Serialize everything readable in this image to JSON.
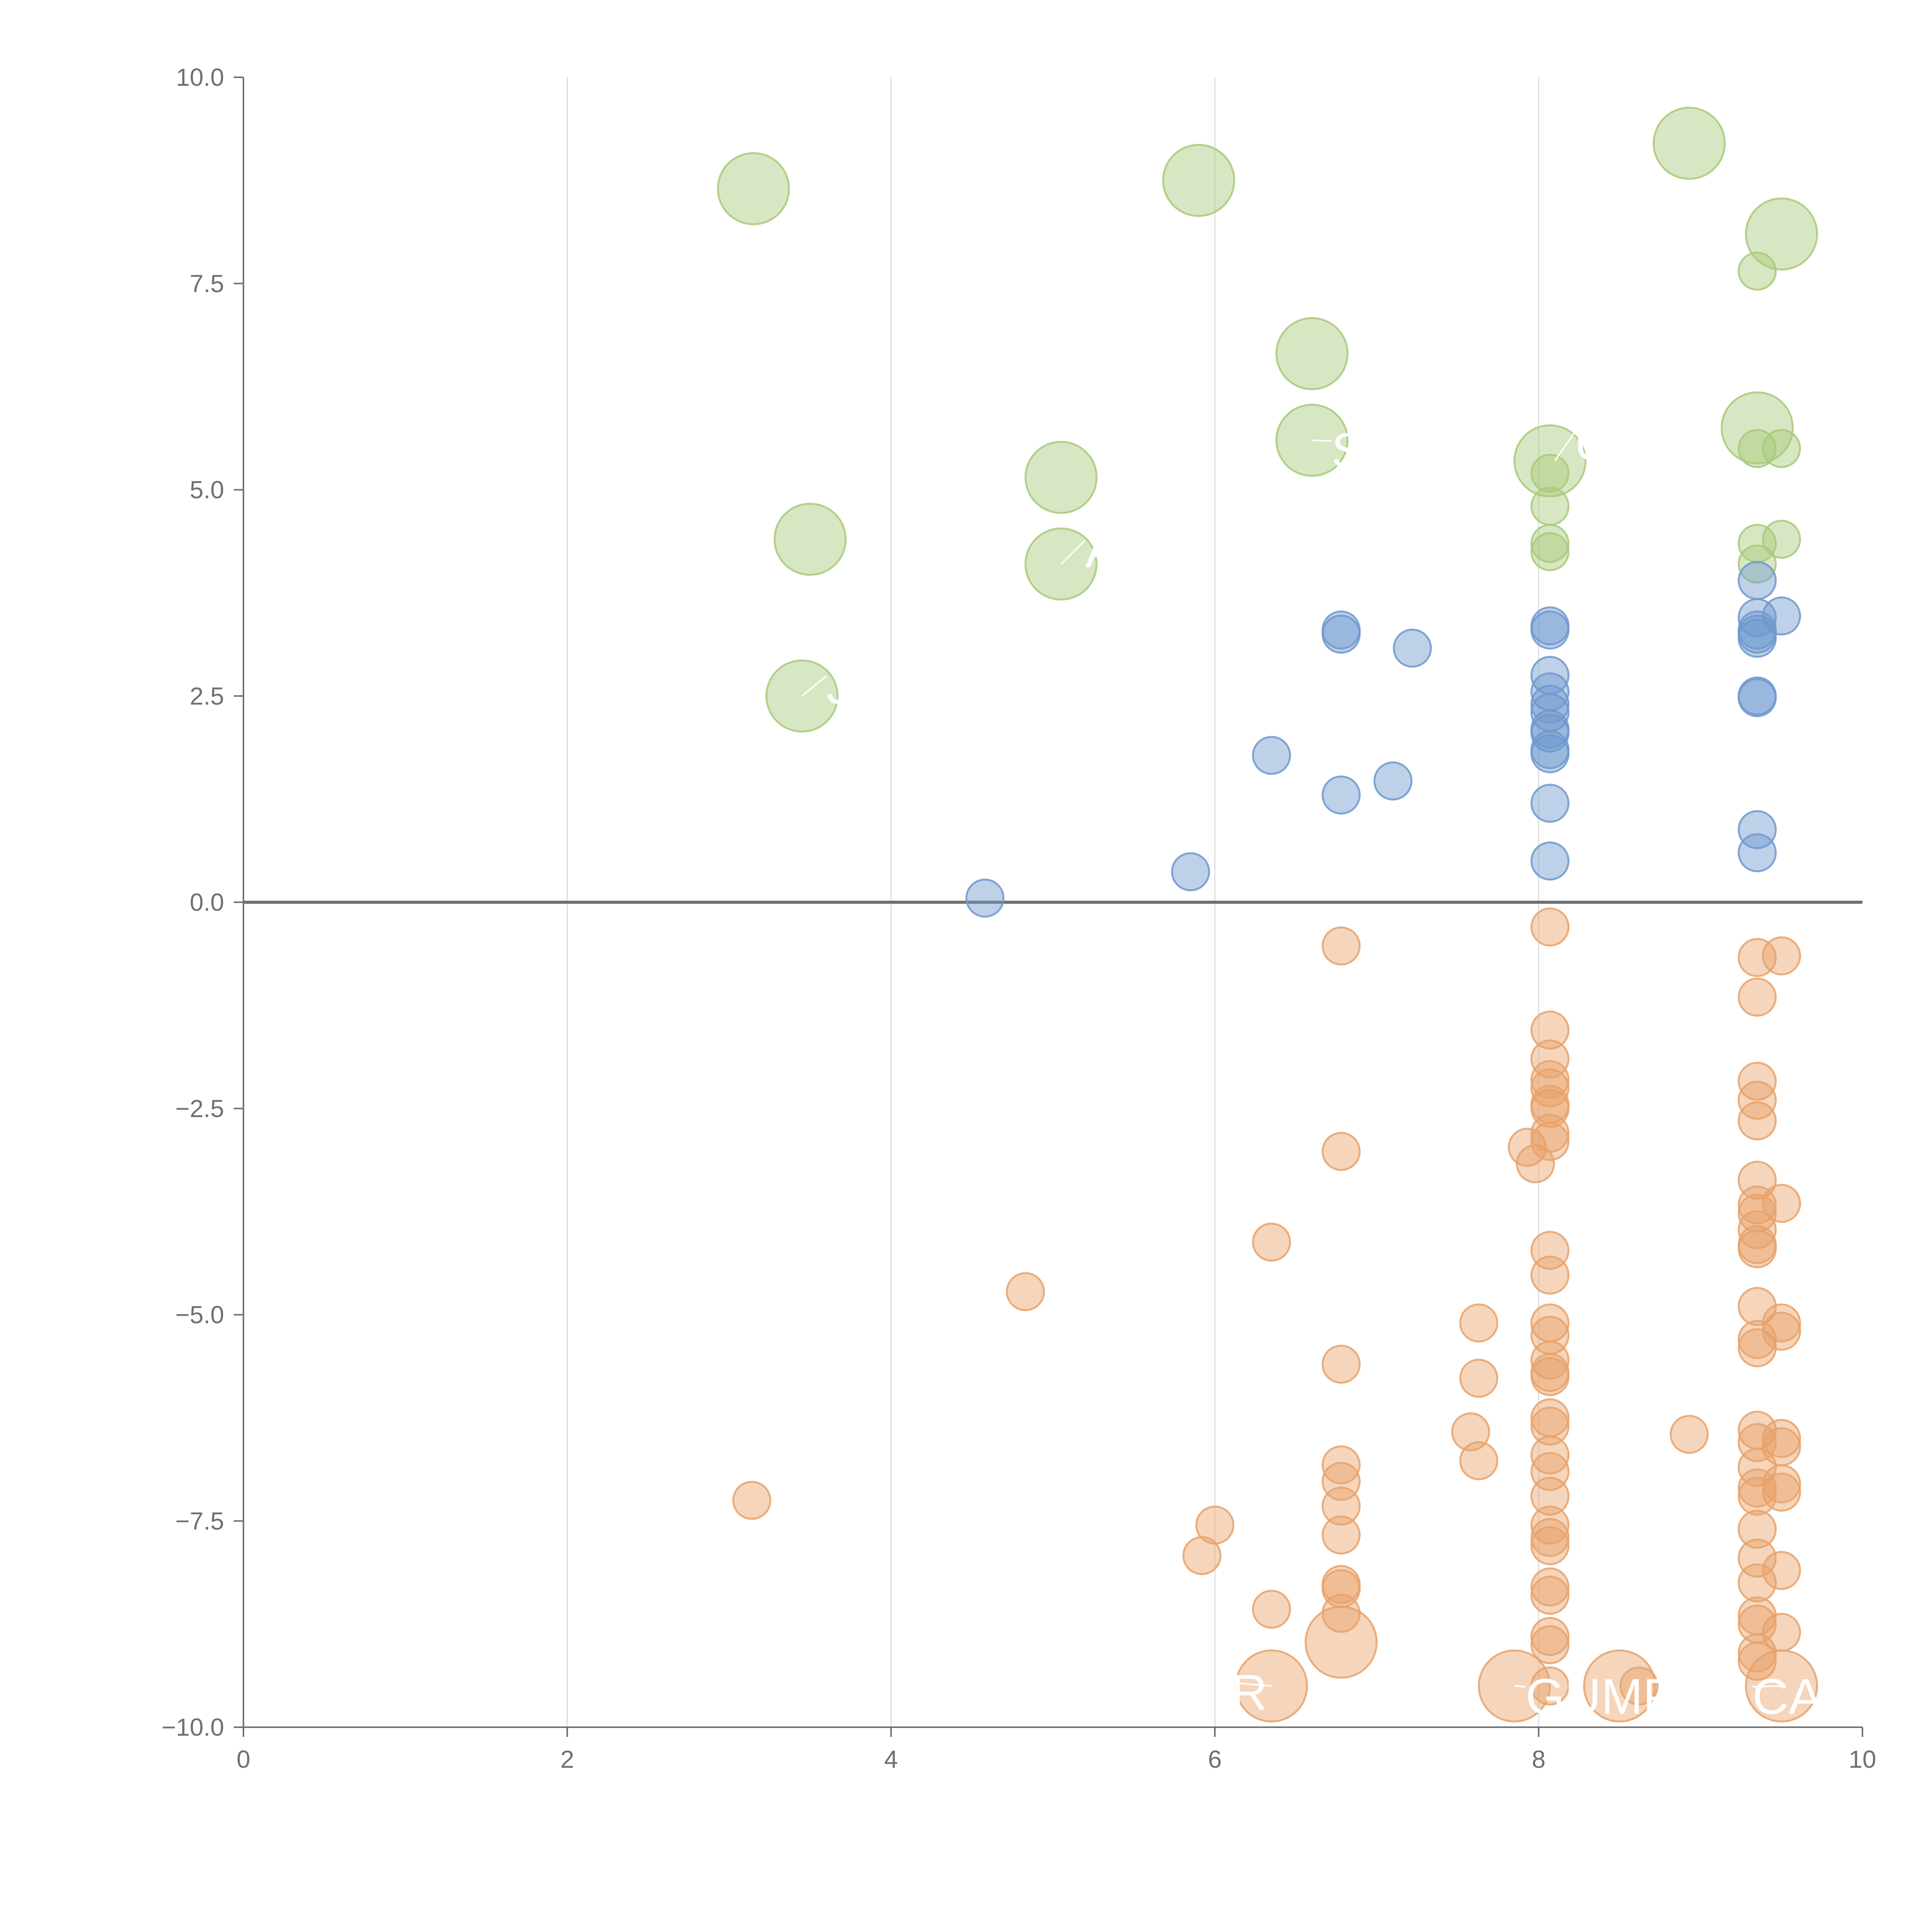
{
  "chart_data": {
    "type": "scatter",
    "title": "",
    "xlabel": "",
    "ylabel": "",
    "xlim": [
      0,
      10
    ],
    "ylim": [
      -10,
      10
    ],
    "x_ticks": [
      "0",
      "2",
      "4",
      "6",
      "8",
      "10"
    ],
    "y_ticks": [
      "10.0",
      "7.5",
      "5.0",
      "2.5",
      "0.0",
      "−2.5",
      "−5.0",
      "−7.5",
      "−10.0"
    ],
    "colors": {
      "green": "#a9c97a",
      "blue": "#6f98cf",
      "orange": "#e8a26a",
      "axis": "#707070",
      "grid": "#dcdcdc"
    },
    "series": [
      {
        "name": "green",
        "color": "#a9c97a",
        "points": [
          {
            "x": 3.15,
            "y": 8.65,
            "size": "large"
          },
          {
            "x": 5.9,
            "y": 8.75,
            "size": "large"
          },
          {
            "x": 8.93,
            "y": 9.2,
            "size": "large"
          },
          {
            "x": 9.5,
            "y": 8.1,
            "size": "large"
          },
          {
            "x": 9.35,
            "y": 7.65,
            "size": "small"
          },
          {
            "x": 6.6,
            "y": 6.65,
            "size": "large"
          },
          {
            "x": 6.6,
            "y": 5.6,
            "size": "large"
          },
          {
            "x": 8.07,
            "y": 5.35,
            "size": "large"
          },
          {
            "x": 9.35,
            "y": 5.75,
            "size": "large"
          },
          {
            "x": 9.35,
            "y": 5.5,
            "size": "small"
          },
          {
            "x": 9.5,
            "y": 5.5,
            "size": "small"
          },
          {
            "x": 5.05,
            "y": 5.15,
            "size": "large"
          },
          {
            "x": 3.5,
            "y": 4.4,
            "size": "large"
          },
          {
            "x": 5.05,
            "y": 4.1,
            "size": "large"
          },
          {
            "x": 3.45,
            "y": 2.5,
            "size": "large"
          },
          {
            "x": 8.07,
            "y": 5.2,
            "size": "small"
          },
          {
            "x": 8.07,
            "y": 4.8,
            "size": "small"
          },
          {
            "x": 8.07,
            "y": 4.35,
            "size": "small"
          },
          {
            "x": 8.07,
            "y": 4.25,
            "size": "small"
          },
          {
            "x": 9.35,
            "y": 4.35,
            "size": "small"
          },
          {
            "x": 9.35,
            "y": 4.1,
            "size": "small"
          },
          {
            "x": 9.5,
            "y": 4.4,
            "size": "small"
          }
        ]
      },
      {
        "name": "blue",
        "color": "#6f98cf",
        "points": [
          {
            "x": 4.58,
            "y": 0.05,
            "size": "small"
          },
          {
            "x": 5.85,
            "y": 0.37,
            "size": "small"
          },
          {
            "x": 6.35,
            "y": 1.78,
            "size": "small"
          },
          {
            "x": 6.78,
            "y": 1.3,
            "size": "small"
          },
          {
            "x": 6.78,
            "y": 3.3,
            "size": "small"
          },
          {
            "x": 6.78,
            "y": 3.25,
            "size": "small"
          },
          {
            "x": 7.1,
            "y": 1.47,
            "size": "small"
          },
          {
            "x": 7.22,
            "y": 3.08,
            "size": "small"
          },
          {
            "x": 8.07,
            "y": 3.35,
            "size": "small"
          },
          {
            "x": 8.07,
            "y": 3.3,
            "size": "small"
          },
          {
            "x": 8.07,
            "y": 2.75,
            "size": "small"
          },
          {
            "x": 8.07,
            "y": 2.55,
            "size": "small"
          },
          {
            "x": 8.07,
            "y": 2.4,
            "size": "small"
          },
          {
            "x": 8.07,
            "y": 2.3,
            "size": "small"
          },
          {
            "x": 8.07,
            "y": 2.1,
            "size": "small"
          },
          {
            "x": 8.07,
            "y": 2.05,
            "size": "small"
          },
          {
            "x": 8.07,
            "y": 1.85,
            "size": "small"
          },
          {
            "x": 8.07,
            "y": 1.8,
            "size": "small"
          },
          {
            "x": 8.07,
            "y": 1.2,
            "size": "small"
          },
          {
            "x": 8.07,
            "y": 0.5,
            "size": "small"
          },
          {
            "x": 9.35,
            "y": 3.9,
            "size": "small"
          },
          {
            "x": 9.35,
            "y": 3.45,
            "size": "small"
          },
          {
            "x": 9.35,
            "y": 3.3,
            "size": "small"
          },
          {
            "x": 9.35,
            "y": 3.25,
            "size": "small"
          },
          {
            "x": 9.35,
            "y": 3.2,
            "size": "small"
          },
          {
            "x": 9.35,
            "y": 2.5,
            "size": "small"
          },
          {
            "x": 9.35,
            "y": 2.48,
            "size": "small"
          },
          {
            "x": 9.35,
            "y": 0.88,
            "size": "small"
          },
          {
            "x": 9.35,
            "y": 0.6,
            "size": "small"
          },
          {
            "x": 9.5,
            "y": 3.47,
            "size": "small"
          }
        ]
      },
      {
        "name": "orange",
        "color": "#e8a26a",
        "points": [
          {
            "x": 3.14,
            "y": -7.25,
            "size": "small"
          },
          {
            "x": 4.83,
            "y": -4.72,
            "size": "small"
          },
          {
            "x": 5.92,
            "y": -7.92,
            "size": "small"
          },
          {
            "x": 6.0,
            "y": -7.55,
            "size": "small"
          },
          {
            "x": 6.35,
            "y": -4.12,
            "size": "small"
          },
          {
            "x": 6.35,
            "y": -8.57,
            "size": "small"
          },
          {
            "x": 6.35,
            "y": -9.5,
            "size": "large"
          },
          {
            "x": 6.78,
            "y": -0.53,
            "size": "small"
          },
          {
            "x": 6.78,
            "y": -3.02,
            "size": "small"
          },
          {
            "x": 6.78,
            "y": -5.6,
            "size": "small"
          },
          {
            "x": 6.78,
            "y": -6.82,
            "size": "small"
          },
          {
            "x": 6.78,
            "y": -7.02,
            "size": "small"
          },
          {
            "x": 6.78,
            "y": -7.32,
            "size": "small"
          },
          {
            "x": 6.78,
            "y": -7.67,
            "size": "small"
          },
          {
            "x": 6.78,
            "y": -8.27,
            "size": "small"
          },
          {
            "x": 6.78,
            "y": -8.32,
            "size": "small"
          },
          {
            "x": 6.78,
            "y": -8.62,
            "size": "small"
          },
          {
            "x": 6.78,
            "y": -8.97,
            "size": "large"
          },
          {
            "x": 7.58,
            "y": -6.42,
            "size": "small"
          },
          {
            "x": 7.63,
            "y": -5.1,
            "size": "small"
          },
          {
            "x": 7.63,
            "y": -5.77,
            "size": "small"
          },
          {
            "x": 7.63,
            "y": -6.77,
            "size": "small"
          },
          {
            "x": 7.85,
            "y": -9.5,
            "size": "large"
          },
          {
            "x": 7.93,
            "y": -2.97,
            "size": "small"
          },
          {
            "x": 7.98,
            "y": -3.17,
            "size": "small"
          },
          {
            "x": 8.07,
            "y": -0.3,
            "size": "small"
          },
          {
            "x": 8.07,
            "y": -1.55,
            "size": "small"
          },
          {
            "x": 8.07,
            "y": -1.9,
            "size": "small"
          },
          {
            "x": 8.07,
            "y": -2.15,
            "size": "small"
          },
          {
            "x": 8.07,
            "y": -2.25,
            "size": "small"
          },
          {
            "x": 8.07,
            "y": -2.45,
            "size": "small"
          },
          {
            "x": 8.07,
            "y": -2.5,
            "size": "small"
          },
          {
            "x": 8.07,
            "y": -2.8,
            "size": "small"
          },
          {
            "x": 8.07,
            "y": -2.9,
            "size": "small"
          },
          {
            "x": 8.07,
            "y": -4.22,
            "size": "small"
          },
          {
            "x": 8.07,
            "y": -4.52,
            "size": "small"
          },
          {
            "x": 8.07,
            "y": -5.1,
            "size": "small"
          },
          {
            "x": 8.07,
            "y": -5.25,
            "size": "small"
          },
          {
            "x": 8.07,
            "y": -5.55,
            "size": "small"
          },
          {
            "x": 8.07,
            "y": -5.7,
            "size": "small"
          },
          {
            "x": 8.07,
            "y": -5.75,
            "size": "small"
          },
          {
            "x": 8.07,
            "y": -6.25,
            "size": "small"
          },
          {
            "x": 8.07,
            "y": -6.35,
            "size": "small"
          },
          {
            "x": 8.07,
            "y": -6.7,
            "size": "small"
          },
          {
            "x": 8.07,
            "y": -6.9,
            "size": "small"
          },
          {
            "x": 8.07,
            "y": -7.2,
            "size": "small"
          },
          {
            "x": 8.07,
            "y": -7.55,
            "size": "small"
          },
          {
            "x": 8.07,
            "y": -7.7,
            "size": "small"
          },
          {
            "x": 8.07,
            "y": -7.8,
            "size": "small"
          },
          {
            "x": 8.07,
            "y": -8.3,
            "size": "small"
          },
          {
            "x": 8.07,
            "y": -8.4,
            "size": "small"
          },
          {
            "x": 8.07,
            "y": -8.9,
            "size": "small"
          },
          {
            "x": 8.07,
            "y": -9.0,
            "size": "small"
          },
          {
            "x": 8.07,
            "y": -9.5,
            "size": "small"
          },
          {
            "x": 8.5,
            "y": -9.5,
            "size": "large"
          },
          {
            "x": 8.62,
            "y": -9.5,
            "size": "small"
          },
          {
            "x": 8.93,
            "y": -6.45,
            "size": "small"
          },
          {
            "x": 9.35,
            "y": -0.67,
            "size": "small"
          },
          {
            "x": 9.35,
            "y": -1.15,
            "size": "small"
          },
          {
            "x": 9.35,
            "y": -2.17,
            "size": "small"
          },
          {
            "x": 9.35,
            "y": -2.4,
            "size": "small"
          },
          {
            "x": 9.35,
            "y": -2.65,
            "size": "small"
          },
          {
            "x": 9.35,
            "y": -3.37,
            "size": "small"
          },
          {
            "x": 9.35,
            "y": -3.67,
            "size": "small"
          },
          {
            "x": 9.35,
            "y": -3.77,
            "size": "small"
          },
          {
            "x": 9.35,
            "y": -3.97,
            "size": "small"
          },
          {
            "x": 9.35,
            "y": -4.15,
            "size": "small"
          },
          {
            "x": 9.35,
            "y": -4.2,
            "size": "small"
          },
          {
            "x": 9.35,
            "y": -4.9,
            "size": "small"
          },
          {
            "x": 9.35,
            "y": -5.3,
            "size": "small"
          },
          {
            "x": 9.35,
            "y": -5.4,
            "size": "small"
          },
          {
            "x": 9.35,
            "y": -6.4,
            "size": "small"
          },
          {
            "x": 9.35,
            "y": -6.55,
            "size": "small"
          },
          {
            "x": 9.35,
            "y": -6.85,
            "size": "small"
          },
          {
            "x": 9.35,
            "y": -7.1,
            "size": "small"
          },
          {
            "x": 9.35,
            "y": -7.2,
            "size": "small"
          },
          {
            "x": 9.35,
            "y": -7.6,
            "size": "small"
          },
          {
            "x": 9.35,
            "y": -7.95,
            "size": "small"
          },
          {
            "x": 9.35,
            "y": -8.25,
            "size": "small"
          },
          {
            "x": 9.35,
            "y": -8.65,
            "size": "small"
          },
          {
            "x": 9.35,
            "y": -8.75,
            "size": "small"
          },
          {
            "x": 9.35,
            "y": -9.1,
            "size": "small"
          },
          {
            "x": 9.35,
            "y": -9.2,
            "size": "small"
          },
          {
            "x": 9.5,
            "y": -0.65,
            "size": "small"
          },
          {
            "x": 9.5,
            "y": -3.65,
            "size": "small"
          },
          {
            "x": 9.5,
            "y": -5.1,
            "size": "small"
          },
          {
            "x": 9.5,
            "y": -5.2,
            "size": "small"
          },
          {
            "x": 9.5,
            "y": -6.5,
            "size": "small"
          },
          {
            "x": 9.5,
            "y": -6.6,
            "size": "small"
          },
          {
            "x": 9.5,
            "y": -7.05,
            "size": "small"
          },
          {
            "x": 9.5,
            "y": -7.15,
            "size": "small"
          },
          {
            "x": 9.5,
            "y": -8.1,
            "size": "small"
          },
          {
            "x": 9.5,
            "y": -8.85,
            "size": "small"
          },
          {
            "x": 9.5,
            "y": -9.5,
            "size": "large"
          }
        ]
      }
    ],
    "annotations": [
      {
        "text": "S",
        "x": 6.72,
        "y": 5.45,
        "anchor_x": 6.6,
        "anchor_y": 5.6
      },
      {
        "text": "U",
        "x": 8.22,
        "y": 5.55,
        "anchor_x": 8.1,
        "anchor_y": 5.35
      },
      {
        "text": "A",
        "x": 5.2,
        "y": 4.25,
        "anchor_x": 5.05,
        "anchor_y": 4.1
      },
      {
        "text": "J",
        "x": 3.6,
        "y": 2.6,
        "anchor_x": 3.45,
        "anchor_y": 2.5
      },
      {
        "text": "R",
        "x": 6.1,
        "y": -9.6,
        "anchor_x": 6.35,
        "anchor_y": -9.5
      },
      {
        "text": "GUMP",
        "x": 7.92,
        "y": -9.65,
        "anchor_x": 7.85,
        "anchor_y": -9.5
      },
      {
        "text": "CA",
        "x": 9.32,
        "y": -9.65,
        "anchor_x": 9.5,
        "anchor_y": -9.5
      }
    ]
  }
}
